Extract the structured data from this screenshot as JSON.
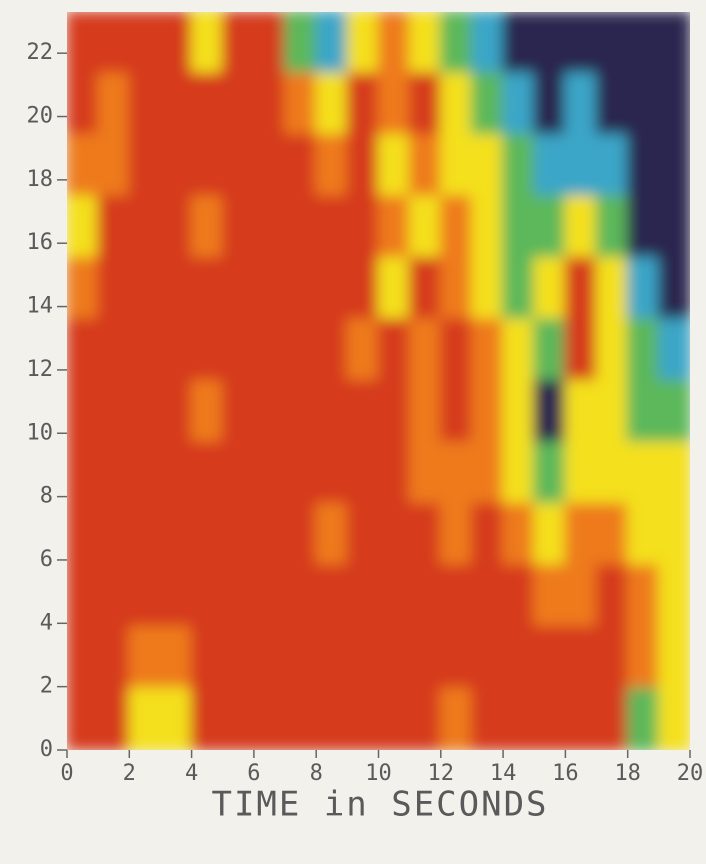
{
  "chart_data": {
    "type": "heatmap",
    "xlabel": "TIME in SECONDS",
    "xlim": [
      0,
      20
    ],
    "xticks": [
      0,
      2,
      4,
      6,
      8,
      10,
      12,
      14,
      16,
      18,
      20
    ],
    "ylim": [
      0,
      23.3
    ],
    "yticks": [
      0,
      2,
      4,
      6,
      8,
      10,
      12,
      14,
      16,
      18,
      20,
      22
    ],
    "colors": [
      "#d63a1e",
      "#ee7a1e",
      "#f4e01c",
      "#5cb85a",
      "#3aa6c8",
      "#2a2550"
    ],
    "z": [
      [
        0,
        0,
        0,
        0,
        2,
        0,
        0,
        3,
        4,
        2,
        1,
        2,
        3,
        4,
        5,
        5,
        5,
        5,
        5,
        5
      ],
      [
        0,
        1,
        0,
        0,
        0,
        0,
        0,
        1,
        2,
        0,
        1,
        0,
        2,
        3,
        4,
        5,
        4,
        5,
        5,
        5
      ],
      [
        1,
        1,
        0,
        0,
        0,
        0,
        0,
        0,
        1,
        0,
        2,
        1,
        2,
        2,
        3,
        4,
        4,
        4,
        5,
        5
      ],
      [
        2,
        0,
        0,
        0,
        1,
        0,
        0,
        0,
        0,
        0,
        1,
        2,
        1,
        2,
        3,
        3,
        2,
        3,
        5,
        5
      ],
      [
        1,
        0,
        0,
        0,
        0,
        0,
        0,
        0,
        0,
        0,
        2,
        0,
        1,
        2,
        3,
        2,
        0,
        2,
        4,
        5
      ],
      [
        0,
        0,
        0,
        0,
        0,
        0,
        0,
        0,
        0,
        1,
        0,
        1,
        0,
        1,
        2,
        3,
        0,
        2,
        3,
        4
      ],
      [
        0,
        0,
        0,
        0,
        1,
        0,
        0,
        0,
        0,
        0,
        0,
        1,
        0,
        1,
        2,
        5,
        2,
        2,
        3,
        3
      ],
      [
        0,
        0,
        0,
        0,
        0,
        0,
        0,
        0,
        0,
        0,
        0,
        1,
        1,
        1,
        2,
        3,
        2,
        2,
        2,
        2
      ],
      [
        0,
        0,
        0,
        0,
        0,
        0,
        0,
        0,
        1,
        0,
        0,
        0,
        1,
        0,
        1,
        2,
        1,
        1,
        2,
        2
      ],
      [
        0,
        0,
        0,
        0,
        0,
        0,
        0,
        0,
        0,
        0,
        0,
        0,
        0,
        0,
        0,
        1,
        1,
        0,
        1,
        2
      ],
      [
        0,
        0,
        1,
        1,
        0,
        0,
        0,
        0,
        0,
        0,
        0,
        0,
        0,
        0,
        0,
        0,
        0,
        0,
        1,
        2
      ],
      [
        0,
        0,
        2,
        2,
        0,
        0,
        0,
        0,
        0,
        0,
        0,
        0,
        1,
        0,
        0,
        0,
        0,
        0,
        3,
        2
      ]
    ]
  }
}
